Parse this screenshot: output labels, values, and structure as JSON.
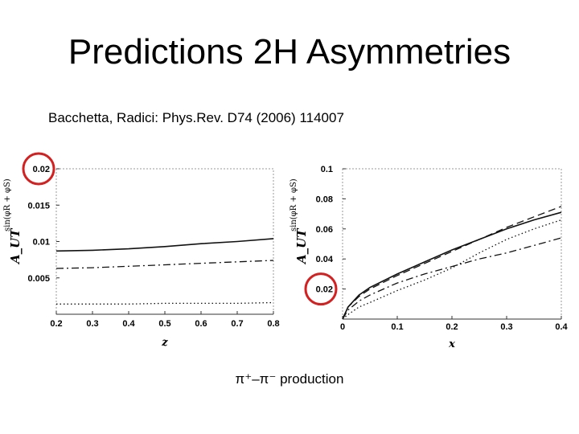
{
  "slide": {
    "title": "Predictions 2H Asymmetries",
    "citation": "Bacchetta, Radici: Phys.Rev. D74 (2006) 114007",
    "caption": "π⁺–π⁻ production",
    "highlight_color": "#d32020"
  },
  "chart_data": [
    {
      "type": "line",
      "xlabel": "z",
      "ylabel": "A_UT",
      "ylabel_sup": "sin(φR + φS)",
      "xlim": [
        0.2,
        0.8
      ],
      "ylim": [
        0.0,
        0.02
      ],
      "x_ticks": [
        "0.2",
        "0.3",
        "0.4",
        "0.5",
        "0.6",
        "0.7",
        "0.8"
      ],
      "y_ticks": [
        "0.005",
        "0.01",
        "0.015",
        "0.02"
      ],
      "highlighted_tick": "0.02",
      "series": [
        {
          "style": "solid",
          "x": [
            0.2,
            0.3,
            0.4,
            0.5,
            0.6,
            0.7,
            0.8
          ],
          "y": [
            0.0087,
            0.0088,
            0.009,
            0.0093,
            0.0097,
            0.01,
            0.0104
          ]
        },
        {
          "style": "dashdot",
          "x": [
            0.2,
            0.3,
            0.4,
            0.5,
            0.6,
            0.7,
            0.8
          ],
          "y": [
            0.0063,
            0.0064,
            0.0066,
            0.0068,
            0.007,
            0.0072,
            0.0074
          ]
        },
        {
          "style": "dotted",
          "x": [
            0.2,
            0.3,
            0.4,
            0.5,
            0.6,
            0.7,
            0.8
          ],
          "y": [
            0.0014,
            0.0014,
            0.0014,
            0.0015,
            0.0015,
            0.0015,
            0.0016
          ]
        }
      ]
    },
    {
      "type": "line",
      "xlabel": "x",
      "ylabel": "A_UT",
      "ylabel_sup": "sin(φR + φS)",
      "xlim": [
        0.0,
        0.4
      ],
      "ylim": [
        0.0,
        0.1
      ],
      "x_ticks": [
        "0",
        "0.1",
        "0.2",
        "0.3",
        "0.4"
      ],
      "y_ticks": [
        "0.02",
        "0.04",
        "0.06",
        "0.08",
        "0.1"
      ],
      "highlighted_tick": "0.02",
      "series": [
        {
          "style": "solid",
          "x": [
            0.0,
            0.01,
            0.03,
            0.05,
            0.1,
            0.15,
            0.2,
            0.25,
            0.3,
            0.35,
            0.4
          ],
          "y": [
            0.0,
            0.008,
            0.016,
            0.021,
            0.03,
            0.038,
            0.046,
            0.053,
            0.06,
            0.066,
            0.071
          ]
        },
        {
          "style": "dashed",
          "x": [
            0.0,
            0.01,
            0.03,
            0.05,
            0.1,
            0.15,
            0.2,
            0.25,
            0.3,
            0.35,
            0.4
          ],
          "y": [
            0.0,
            0.008,
            0.015,
            0.02,
            0.029,
            0.037,
            0.045,
            0.053,
            0.061,
            0.068,
            0.075
          ]
        },
        {
          "style": "dashdot",
          "x": [
            0.0,
            0.01,
            0.03,
            0.05,
            0.1,
            0.15,
            0.2,
            0.25,
            0.3,
            0.35,
            0.4
          ],
          "y": [
            0.0,
            0.006,
            0.012,
            0.016,
            0.024,
            0.03,
            0.035,
            0.04,
            0.044,
            0.049,
            0.054
          ]
        },
        {
          "style": "dotted",
          "x": [
            0.0,
            0.01,
            0.03,
            0.05,
            0.1,
            0.15,
            0.2,
            0.25,
            0.3,
            0.35,
            0.4
          ],
          "y": [
            0.0,
            0.003,
            0.008,
            0.011,
            0.019,
            0.026,
            0.034,
            0.044,
            0.053,
            0.06,
            0.066
          ]
        }
      ]
    }
  ]
}
